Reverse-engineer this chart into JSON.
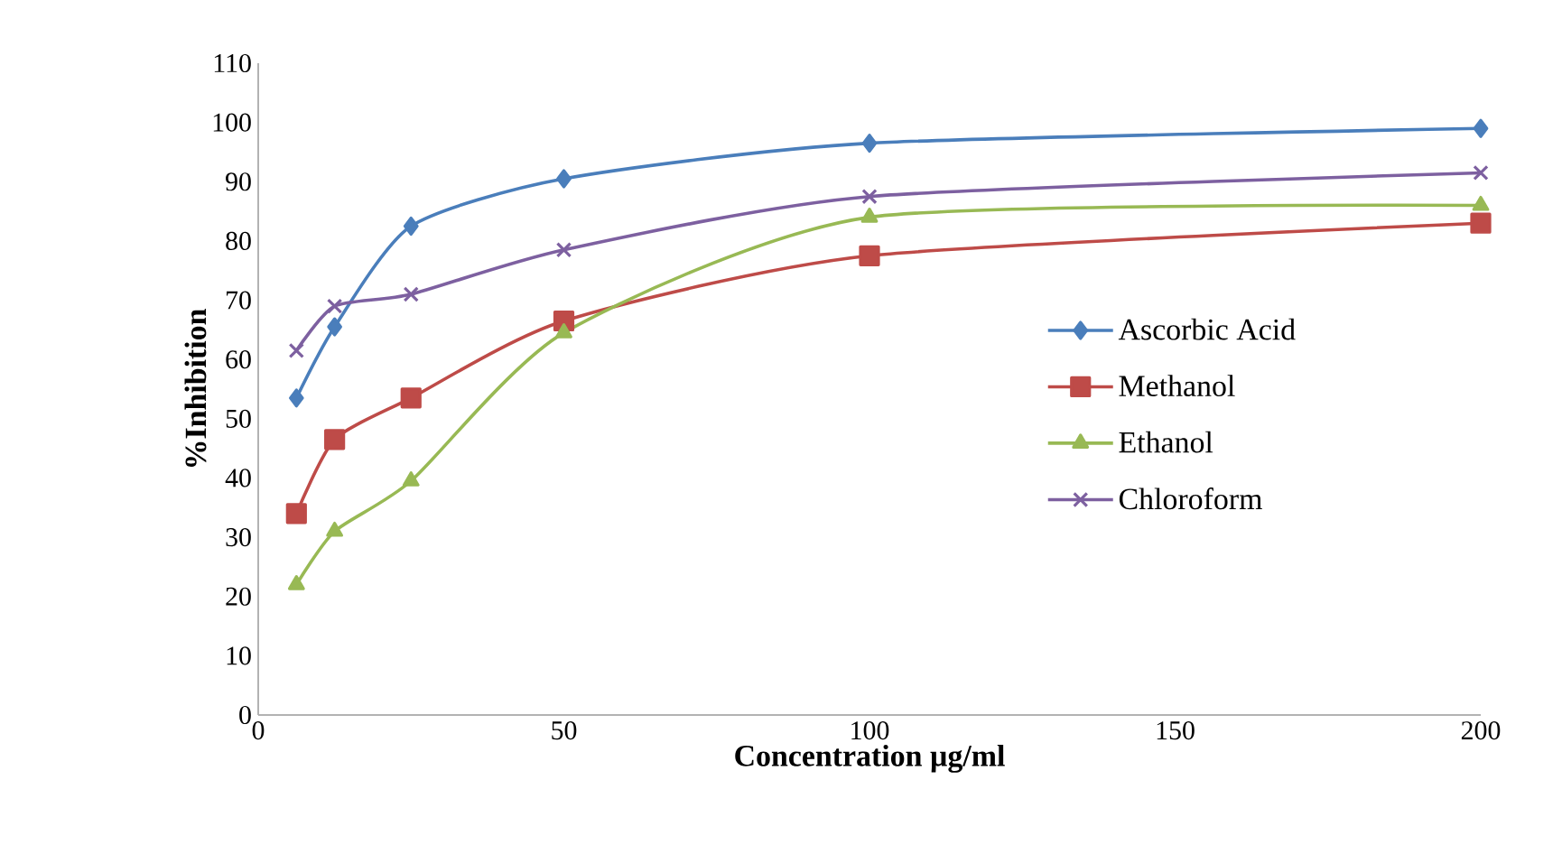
{
  "chart_data": {
    "type": "line",
    "xlabel": "Concentration µg/ml",
    "ylabel": "%Inhibition",
    "x": [
      6.25,
      12.5,
      25,
      50,
      100,
      200
    ],
    "series": [
      {
        "name": "Ascorbic Acid",
        "color": "#4a7ebb",
        "marker": "diamond",
        "values": [
          53.5,
          65.5,
          82.5,
          90.5,
          96.5,
          99
        ]
      },
      {
        "name": "Methanol",
        "color": "#be4b48",
        "marker": "square",
        "values": [
          34,
          46.5,
          53.5,
          66.5,
          77.5,
          83
        ]
      },
      {
        "name": "Ethanol",
        "color": "#98b954",
        "marker": "triangle",
        "values": [
          22,
          31,
          39.5,
          64.5,
          84,
          86
        ]
      },
      {
        "name": "Chloroform",
        "color": "#7d60a0",
        "marker": "cross",
        "values": [
          61.5,
          69,
          71,
          78.5,
          87.5,
          91.5
        ]
      }
    ],
    "xlim": [
      0,
      200
    ],
    "xticks": [
      0,
      50,
      100,
      150,
      200
    ],
    "ylim": [
      0,
      110
    ],
    "yticks": [
      0,
      10,
      20,
      30,
      40,
      50,
      60,
      70,
      80,
      90,
      100,
      110
    ],
    "grid": false,
    "legend": "right"
  }
}
